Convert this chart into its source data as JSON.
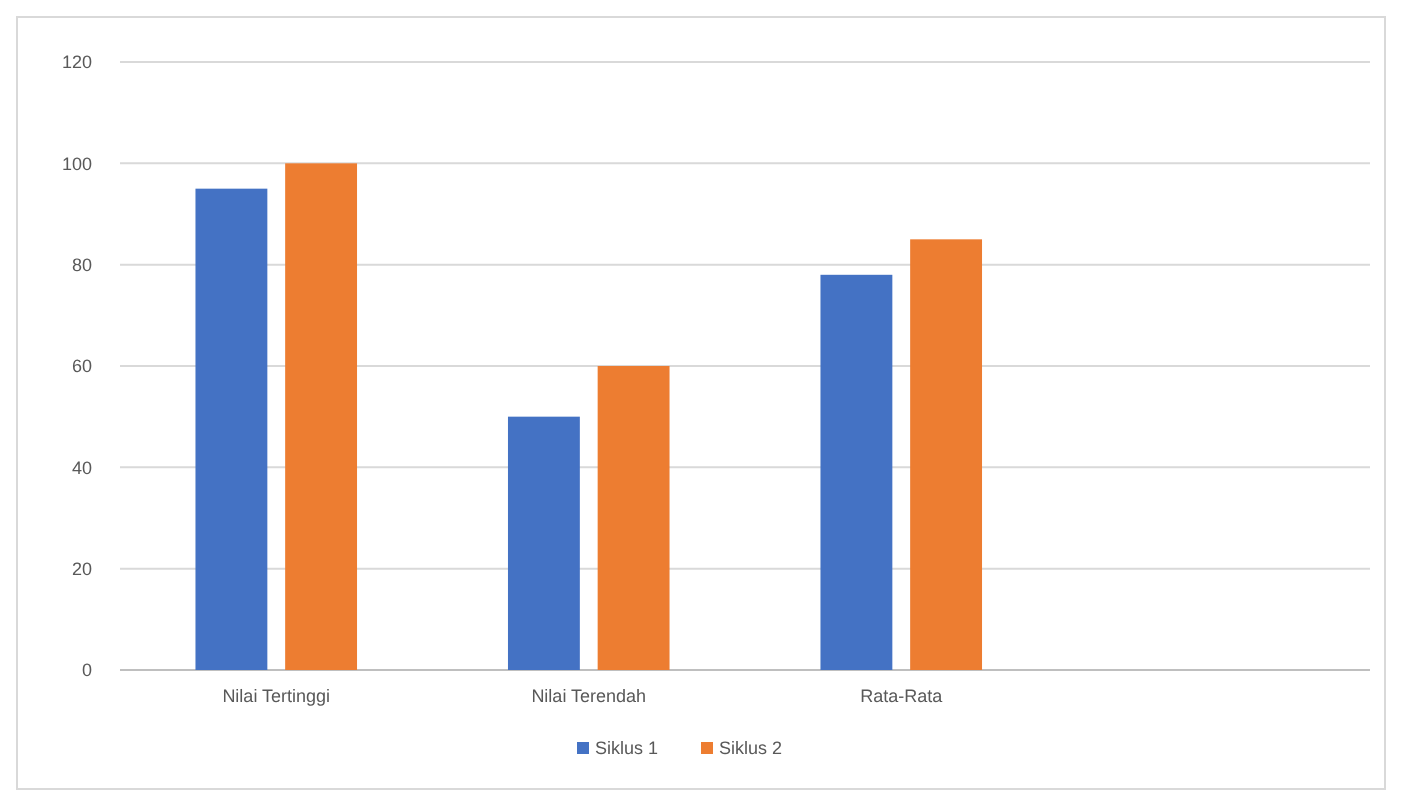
{
  "chart_data": {
    "type": "bar",
    "categories": [
      "Nilai Tertinggi",
      "Nilai Terendah",
      "Rata-Rata",
      null
    ],
    "series": [
      {
        "name": "Siklus 1",
        "color": "#4472c4",
        "values": [
          95,
          50,
          78,
          null
        ]
      },
      {
        "name": "Siklus 2",
        "color": "#ed7d31",
        "values": [
          100,
          60,
          85,
          null
        ]
      }
    ],
    "ylim": [
      0,
      120
    ],
    "yticks": [
      0,
      20,
      40,
      60,
      80,
      100,
      120
    ],
    "grid": "y",
    "legend": "bottom"
  }
}
